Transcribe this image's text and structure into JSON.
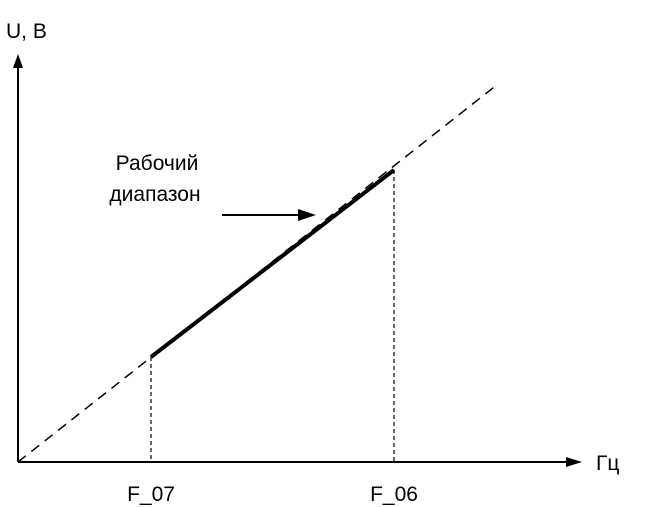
{
  "diagram": {
    "y_axis_label": "U, В",
    "x_axis_label": "Гц",
    "annotation_line1": "Рабочий",
    "annotation_line2": "диапазон",
    "tick_left": "F_07",
    "tick_right": "F_06"
  },
  "colors": {
    "stroke": "#000000",
    "background": "#ffffff"
  }
}
